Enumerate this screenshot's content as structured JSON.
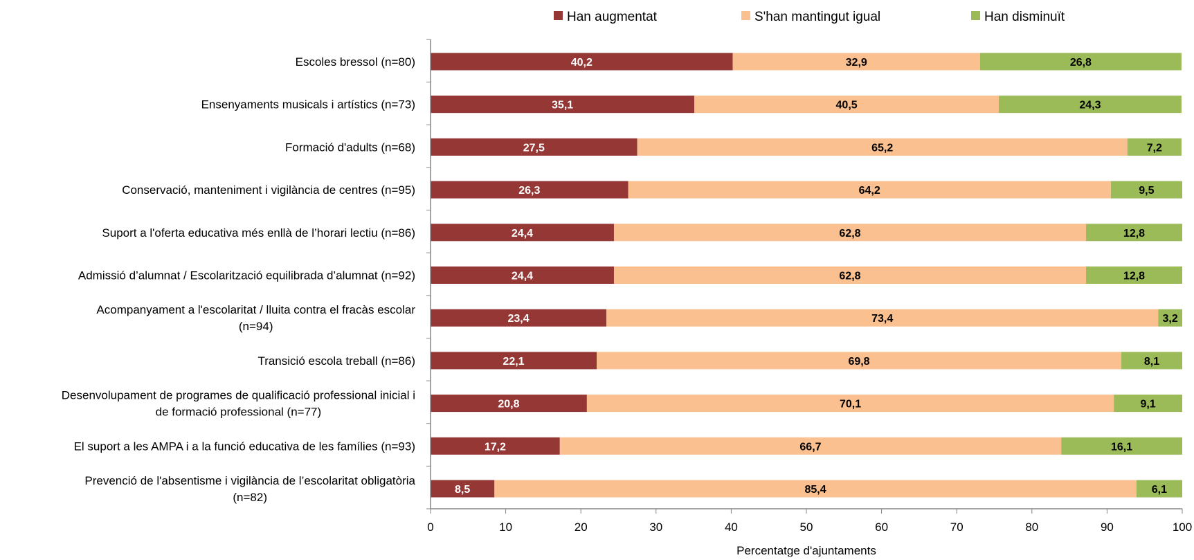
{
  "chart_data": {
    "type": "bar",
    "orientation": "horizontal",
    "stacked": true,
    "xlabel": "Percentatge d'ajuntaments",
    "ylabel": "",
    "title": "",
    "xlim": [
      0,
      100
    ],
    "xticks": [
      0,
      10,
      20,
      30,
      40,
      50,
      60,
      70,
      80,
      90,
      100
    ],
    "grid": false,
    "legend_position": "top",
    "categories": [
      "Escoles bressol (n=80)",
      "Ensenyaments musicals i artístics (n=73)",
      "Formació d'adults  (n=68)",
      "Conservació, manteniment i vigilància de centres  (n=95)",
      "Suport a l'oferta educativa més enllà de l’horari lectiu  (n=86)",
      "Admissió d’alumnat / Escolarització equilibrada d’alumnat  (n=92)",
      "Acompanyament a l'escolaritat / lluita contra el fracàs escolar (n=94)",
      "Transició escola treball  (n=86)",
      "Desenvolupament de programes de qualificació professional inicial i de formació professional  (n=77)",
      "El suport a les AMPA i a la funció educativa de les famílies  (n=93)",
      "Prevenció de l'absentisme i vigilància de l’escolaritat obligatòria (n=82)"
    ],
    "category_lines": [
      [
        "Escoles bressol (n=80)"
      ],
      [
        "Ensenyaments musicals i artístics (n=73)"
      ],
      [
        "Formació d'adults  (n=68)"
      ],
      [
        "Conservació, manteniment i vigilància de centres  (n=95)"
      ],
      [
        "Suport a l'oferta educativa més enllà de l’horari lectiu  (n=86)"
      ],
      [
        "Admissió d’alumnat / Escolarització equilibrada d’alumnat  (n=92)"
      ],
      [
        "Acompanyament a l'escolaritat / lluita contra el fracàs escolar",
        "(n=94)"
      ],
      [
        "Transició escola treball  (n=86)"
      ],
      [
        "Desenvolupament de programes de qualificació professional inicial i",
        "de formació professional  (n=77)"
      ],
      [
        "El suport a les AMPA i a la funció educativa de les famílies  (n=93)"
      ],
      [
        "Prevenció de l'absentisme i vigilància de l’escolaritat obligatòria",
        "(n=82)"
      ]
    ],
    "series": [
      {
        "name": "Han augmentat",
        "color": "#953735",
        "label_color": "#ffffff",
        "values": [
          40.2,
          35.1,
          27.5,
          26.3,
          24.4,
          24.4,
          23.4,
          22.1,
          20.8,
          17.2,
          8.5
        ],
        "labels": [
          "40,2",
          "35,1",
          "27,5",
          "26,3",
          "24,4",
          "24,4",
          "23,4",
          "22,1",
          "20,8",
          "17,2",
          "8,5"
        ]
      },
      {
        "name": "S'han mantingut igual",
        "color": "#fac090",
        "label_color": "#000000",
        "values": [
          32.9,
          40.5,
          65.2,
          64.2,
          62.8,
          62.8,
          73.4,
          69.8,
          70.1,
          66.7,
          85.4
        ],
        "labels": [
          "32,9",
          "40,5",
          "65,2",
          "64,2",
          "62,8",
          "62,8",
          "73,4",
          "69,8",
          "70,1",
          "66,7",
          "85,4"
        ]
      },
      {
        "name": "Han disminuït",
        "color": "#9bbb59",
        "label_color": "#000000",
        "values": [
          26.8,
          24.3,
          7.2,
          9.5,
          12.8,
          12.8,
          3.2,
          8.1,
          9.1,
          16.1,
          6.1
        ],
        "labels": [
          "26,8",
          "24,3",
          "7,2",
          "9,5",
          "12,8",
          "12,8",
          "3,2",
          "8,1",
          "9,1",
          "16,1",
          "6,1"
        ]
      }
    ]
  }
}
